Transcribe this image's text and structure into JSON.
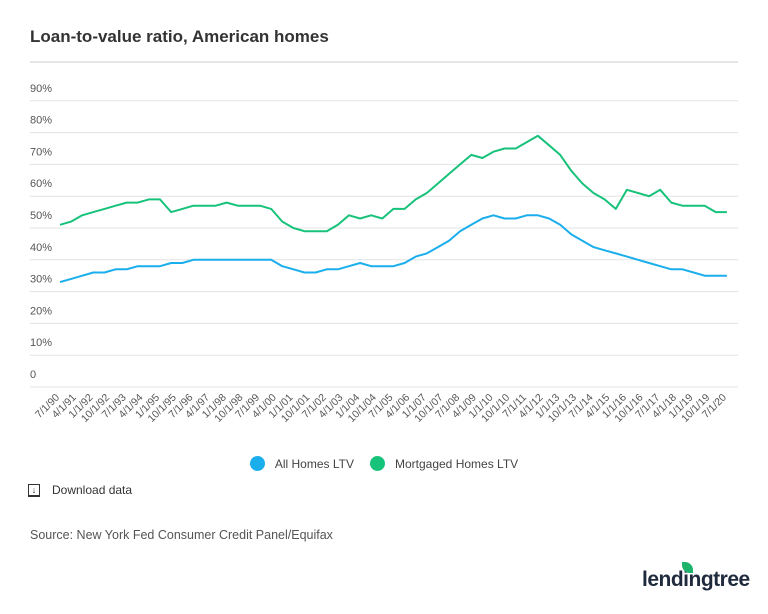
{
  "title": "Loan-to-value ratio, American homes",
  "download_label": "Download data",
  "source": "Source: New York Fed Consumer Credit Panel/Equifax",
  "logo": "lendingtree",
  "colors": {
    "all_homes": "#1aaeec",
    "mortgaged": "#17c27a",
    "grid": "#e3e3e3"
  },
  "chart_data": {
    "type": "line",
    "title": "Loan-to-value ratio, American homes",
    "ylim": [
      0,
      90
    ],
    "y_ticks": [
      "0",
      "10%",
      "20%",
      "30%",
      "40%",
      "50%",
      "60%",
      "70%",
      "80%",
      "90%"
    ],
    "x_ticks": [
      "7/1/90",
      "4/1/91",
      "1/1/92",
      "10/1/92",
      "7/1/93",
      "4/1/94",
      "1/1/95",
      "10/1/95",
      "7/1/96",
      "4/1/97",
      "1/1/98",
      "10/1/98",
      "7/1/99",
      "4/1/00",
      "1/1/01",
      "10/1/01",
      "7/1/02",
      "4/1/03",
      "1/1/04",
      "10/1/04",
      "7/1/05",
      "4/1/06",
      "1/1/07",
      "10/1/07",
      "7/1/08",
      "4/1/09",
      "1/1/10",
      "10/1/10",
      "7/1/11",
      "4/1/12",
      "1/1/13",
      "10/1/13",
      "7/1/14",
      "4/1/15",
      "1/1/16",
      "10/1/16",
      "7/1/17",
      "4/1/18",
      "1/1/19",
      "10/1/19",
      "7/1/20"
    ],
    "grid": true,
    "legend": "bottom",
    "x": [
      "7/1/90",
      "1/1/91",
      "7/1/91",
      "1/1/92",
      "7/1/92",
      "1/1/93",
      "7/1/93",
      "1/1/94",
      "7/1/94",
      "1/1/95",
      "7/1/95",
      "1/1/96",
      "7/1/96",
      "1/1/97",
      "7/1/97",
      "1/1/98",
      "7/1/98",
      "1/1/99",
      "7/1/99",
      "1/1/00",
      "7/1/00",
      "1/1/01",
      "7/1/01",
      "1/1/02",
      "7/1/02",
      "1/1/03",
      "7/1/03",
      "1/1/04",
      "7/1/04",
      "1/1/05",
      "7/1/05",
      "1/1/06",
      "7/1/06",
      "1/1/07",
      "7/1/07",
      "1/1/08",
      "7/1/08",
      "1/1/09",
      "7/1/09",
      "1/1/10",
      "7/1/10",
      "1/1/11",
      "7/1/11",
      "1/1/12",
      "7/1/12",
      "1/1/13",
      "7/1/13",
      "1/1/14",
      "7/1/14",
      "1/1/15",
      "7/1/15",
      "1/1/16",
      "7/1/16",
      "1/1/17",
      "7/1/17",
      "1/1/18",
      "7/1/18",
      "1/1/19",
      "7/1/19",
      "1/1/20",
      "7/1/20"
    ],
    "series": [
      {
        "name": "All Homes LTV",
        "values": [
          33,
          34,
          35,
          36,
          36,
          37,
          37,
          38,
          38,
          38,
          39,
          39,
          40,
          40,
          40,
          40,
          40,
          40,
          40,
          40,
          38,
          37,
          36,
          36,
          37,
          37,
          38,
          39,
          38,
          38,
          38,
          39,
          41,
          42,
          44,
          46,
          49,
          51,
          53,
          54,
          53,
          53,
          54,
          54,
          53,
          51,
          48,
          46,
          44,
          43,
          42,
          41,
          40,
          39,
          38,
          37,
          37,
          36,
          35,
          35,
          35
        ]
      },
      {
        "name": "Mortgaged Homes LTV",
        "values": [
          51,
          52,
          54,
          55,
          56,
          57,
          58,
          58,
          59,
          59,
          55,
          56,
          57,
          57,
          57,
          58,
          57,
          57,
          57,
          56,
          52,
          50,
          49,
          49,
          49,
          51,
          54,
          53,
          54,
          53,
          56,
          56,
          59,
          61,
          64,
          67,
          70,
          73,
          72,
          74,
          75,
          75,
          77,
          79,
          76,
          73,
          68,
          64,
          61,
          59,
          56,
          62,
          61,
          60,
          62,
          58,
          57,
          57,
          57,
          55,
          55
        ]
      }
    ]
  }
}
